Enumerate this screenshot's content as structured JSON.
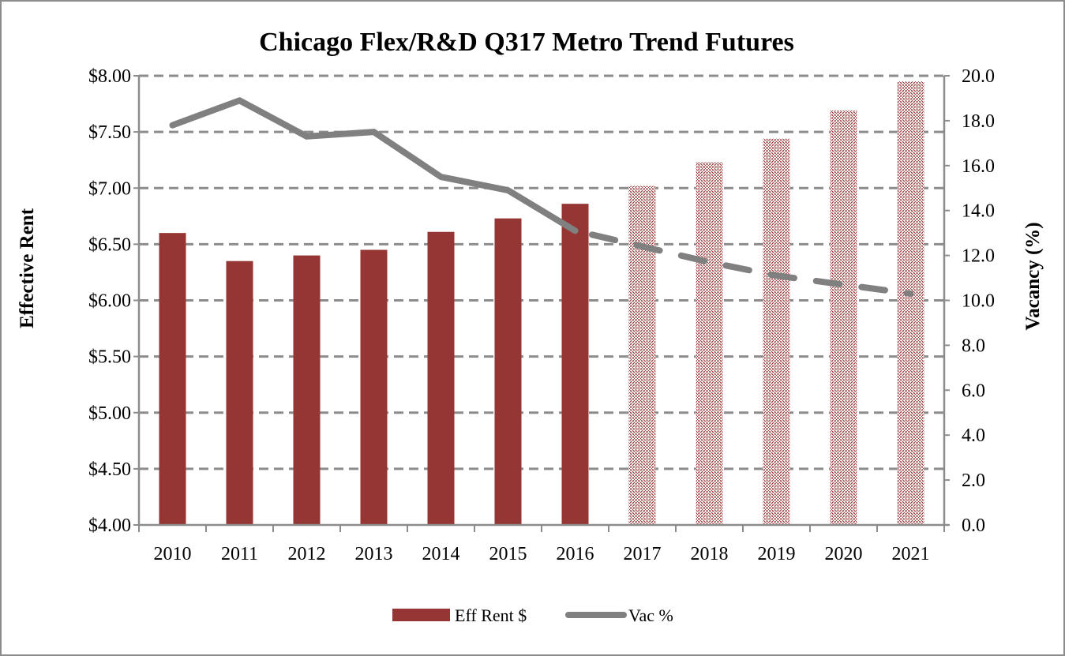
{
  "chart_data": {
    "type": "bar",
    "title": "Chicago Flex/R&D Q317 Metro Trend Futures",
    "xlabel": "",
    "ylabel": "Effective Rent",
    "y2label": "Vacancy (%)",
    "categories": [
      "2010",
      "2011",
      "2012",
      "2013",
      "2014",
      "2015",
      "2016",
      "2017",
      "2018",
      "2019",
      "2020",
      "2021"
    ],
    "forecast_start_index": 7,
    "ylim": [
      4.0,
      8.0
    ],
    "y_ticks": [
      "$4.00",
      "$4.50",
      "$5.00",
      "$5.50",
      "$6.00",
      "$6.50",
      "$7.00",
      "$7.50",
      "$8.00"
    ],
    "y_tick_values": [
      4.0,
      4.5,
      5.0,
      5.5,
      6.0,
      6.5,
      7.0,
      7.5,
      8.0
    ],
    "y2lim": [
      0.0,
      20.0
    ],
    "y2_ticks": [
      "0.0",
      "2.0",
      "4.0",
      "6.0",
      "8.0",
      "10.0",
      "12.0",
      "14.0",
      "16.0",
      "18.0",
      "20.0"
    ],
    "y2_tick_values": [
      0,
      2,
      4,
      6,
      8,
      10,
      12,
      14,
      16,
      18,
      20
    ],
    "grid": true,
    "legend_position": "bottom-center",
    "series": [
      {
        "name": "Eff Rent $",
        "type": "bar",
        "axis": "left",
        "color": "#963634",
        "values": [
          6.6,
          6.35,
          6.4,
          6.45,
          6.61,
          6.73,
          6.86,
          7.02,
          7.23,
          7.44,
          7.69,
          7.95
        ]
      },
      {
        "name": "Vac %",
        "type": "line",
        "axis": "right",
        "color": "#808080",
        "values": [
          17.8,
          18.9,
          17.3,
          17.5,
          15.5,
          14.9,
          13.1,
          12.4,
          11.7,
          11.1,
          10.7,
          10.3
        ]
      }
    ]
  }
}
